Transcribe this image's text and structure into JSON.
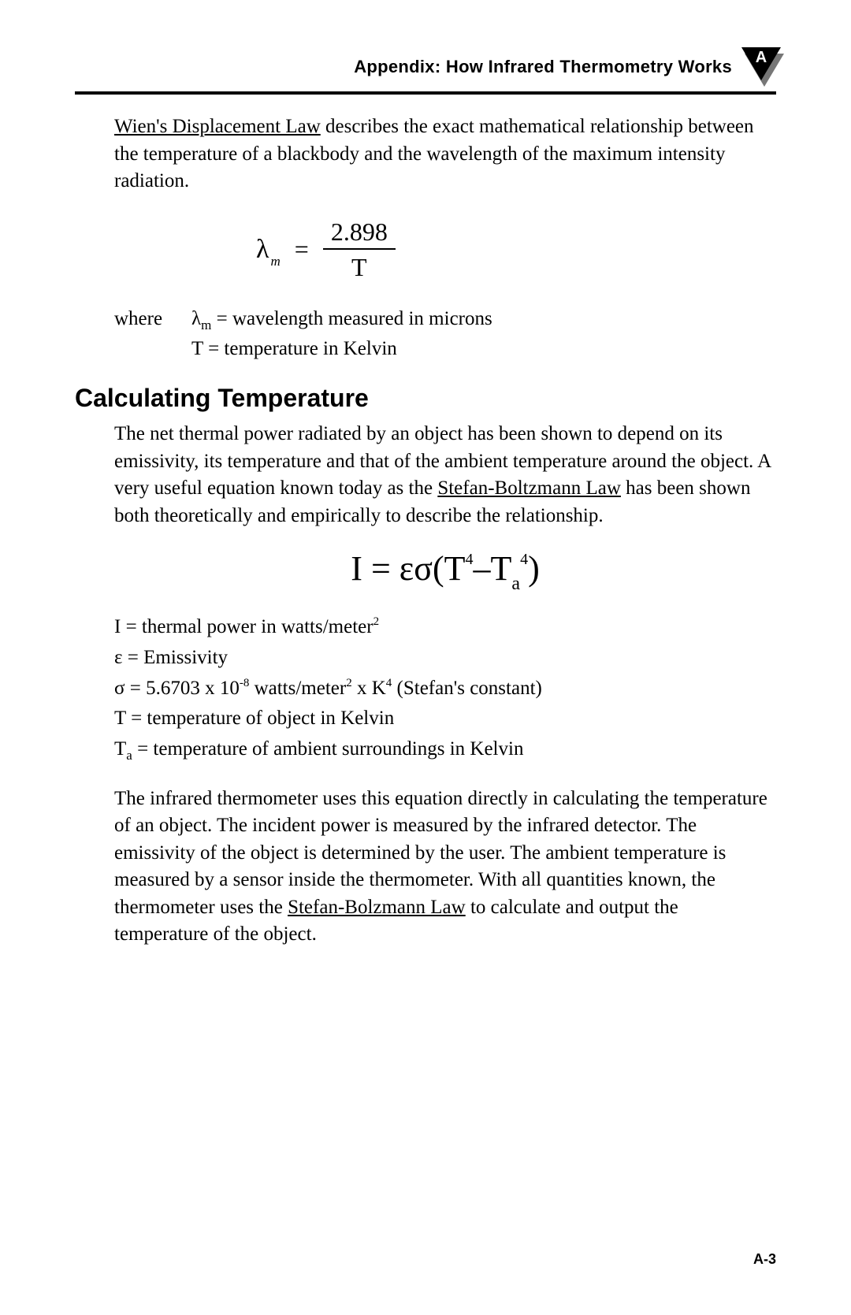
{
  "header": {
    "title": "Appendix: How Infrared Thermometry Works",
    "badge_letter": "A"
  },
  "intro": {
    "law_name": "Wien's Displacement Law",
    "text_after": " describes the exact mathematical relationship between the temperature of a blackbody and the wavelength of the maximum intensity radiation."
  },
  "eq1": {
    "lambda": "λ",
    "sub": "m",
    "equals": "=",
    "numerator": "2.898",
    "denominator": "T"
  },
  "where": {
    "lead": "where",
    "line1_pre": "λ",
    "line1_sub": "m",
    "line1_rest": " = wavelength measured in microns",
    "line2": "T = temperature in Kelvin"
  },
  "section_heading": "Calculating Temperature",
  "calc_para": {
    "before": "The net thermal power radiated by an object has been shown to depend on its emissivity, its temperature and that of the ambient temperature around the object. A very useful equation known today as the ",
    "law": "Stefan-Boltzmann Law",
    "after": " has been shown both theoretically and empirically to describe the relationship."
  },
  "eq2": {
    "I": "I",
    "eq": " = ",
    "eps": "ε",
    "sigma": "σ",
    "lpar": "(",
    "T": "T",
    "sup4a": "4",
    "minus": "–",
    "Ta_T": "T",
    "Ta_sub": "a",
    "sup4b": "4",
    "rpar": ")"
  },
  "defs": {
    "l1a": "I = thermal power in watts/meter",
    "l1sup": "2",
    "l2": "ε = Emissivity",
    "l3a": "σ = 5.6703 x 10",
    "l3sup1": "-8",
    "l3b": " watts/meter",
    "l3sup2": "2",
    "l3c": " x K",
    "l3sup3": "4",
    "l3d": "  (Stefan's constant)",
    "l4": "T = temperature of object in Kelvin",
    "l5a": "T",
    "l5sub": "a",
    "l5b": " = temperature of ambient surroundings in Kelvin"
  },
  "final_para": {
    "before": "The infrared thermometer uses this equation directly in calculating the temperature of an object. The incident power is measured by the infrared detector. The emissivity of the object is determined by the user. The ambient temperature is measured by a sensor inside the thermometer. With all quantities known, the thermometer uses the ",
    "law": "Stefan-Bolzmann Law",
    "after": " to calculate and output the temperature of the object."
  },
  "page_number": "A-3",
  "colors": {
    "text": "#000000",
    "bg": "#ffffff",
    "shadow": "#777777"
  }
}
